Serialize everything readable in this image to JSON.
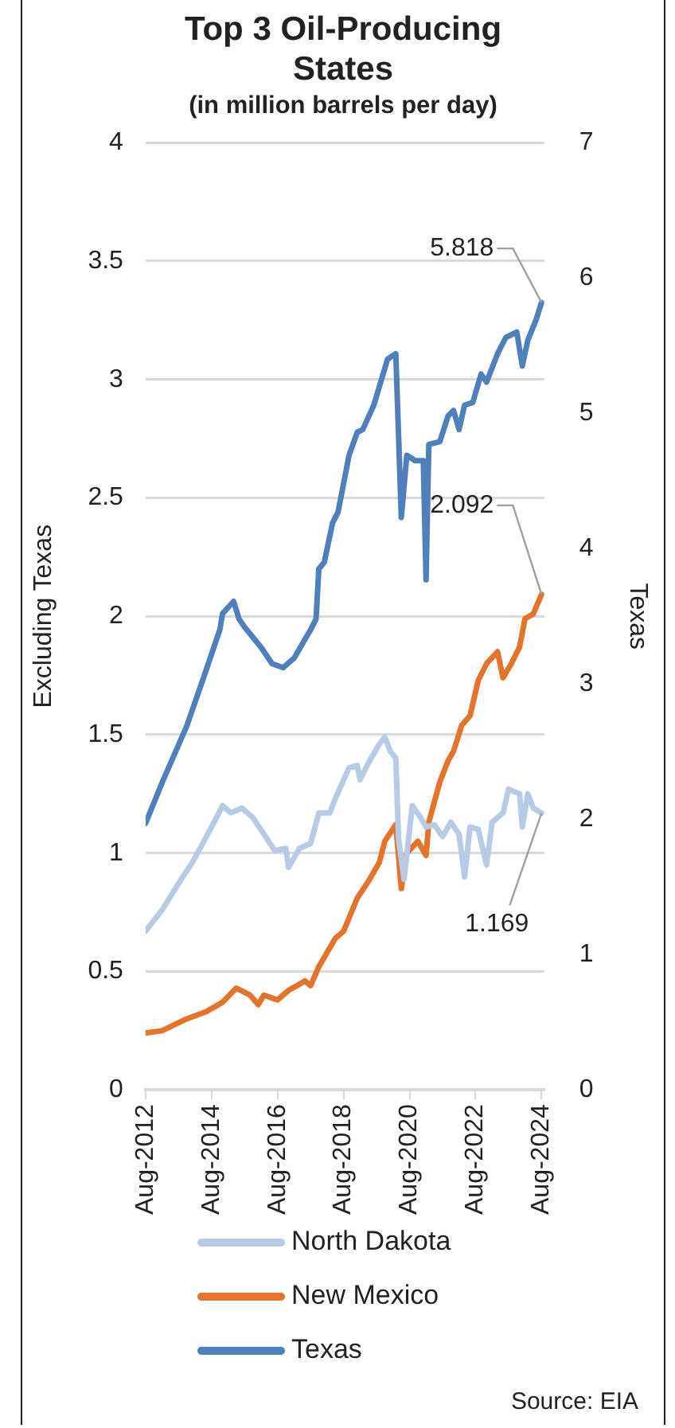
{
  "chart_data": {
    "type": "line",
    "title": "Top 3 Oil-Producing States",
    "subtitle": "(in million barrels per day)",
    "ylabel": "Excluding Texas",
    "y2label": "Texas",
    "xlim": [
      "2012-08",
      "2024-09"
    ],
    "xticks": [
      {
        "value": "2012-08",
        "label": "Aug-2012"
      },
      {
        "value": "2014-08",
        "label": "Aug-2014"
      },
      {
        "value": "2016-08",
        "label": "Aug-2016"
      },
      {
        "value": "2018-08",
        "label": "Aug-2018"
      },
      {
        "value": "2020-08",
        "label": "Aug-2020"
      },
      {
        "value": "2022-08",
        "label": "Aug-2022"
      },
      {
        "value": "2024-08",
        "label": "Aug-2024"
      }
    ],
    "ylim": [
      0,
      4
    ],
    "yticks": [
      0,
      0.5,
      1,
      1.5,
      2,
      2.5,
      3,
      3.5,
      4
    ],
    "y2lim": [
      0,
      7
    ],
    "y2ticks": [
      0,
      1,
      2,
      3,
      4,
      5,
      6,
      7
    ],
    "grid": "y",
    "legend": "bottom",
    "marker": "none",
    "series": [
      {
        "name": "North Dakota",
        "color": "#b7cbe4",
        "x": [
          "2012-08",
          "2013-02",
          "2013-09",
          "2014-01",
          "2014-08",
          "2014-12",
          "2015-03",
          "2015-07",
          "2015-11",
          "2016-03",
          "2016-07",
          "2016-11",
          "2016-12",
          "2017-04",
          "2017-08",
          "2017-11",
          "2018-03",
          "2018-05",
          "2018-10",
          "2019-01",
          "2019-02",
          "2019-05",
          "2019-09",
          "2019-11",
          "2020-01",
          "2020-03",
          "2020-04",
          "2020-06",
          "2020-09",
          "2020-12",
          "2021-02",
          "2021-05",
          "2021-08",
          "2021-11",
          "2022-02",
          "2022-04",
          "2022-06",
          "2022-09",
          "2022-12",
          "2023-02",
          "2023-06",
          "2023-08",
          "2023-12",
          "2024-01",
          "2024-03",
          "2024-05",
          "2024-08"
        ],
        "values": [
          0.67,
          0.76,
          0.89,
          0.96,
          1.11,
          1.2,
          1.17,
          1.19,
          1.15,
          1.08,
          1.01,
          1.02,
          0.94,
          1.02,
          1.04,
          1.17,
          1.17,
          1.23,
          1.36,
          1.37,
          1.31,
          1.38,
          1.46,
          1.49,
          1.43,
          1.4,
          1.06,
          0.89,
          1.2,
          1.15,
          1.11,
          1.12,
          1.07,
          1.13,
          1.08,
          0.9,
          1.11,
          1.1,
          0.95,
          1.13,
          1.17,
          1.27,
          1.25,
          1.11,
          1.25,
          1.19,
          1.169
        ],
        "value_labels": [
          null,
          null,
          null,
          null,
          null,
          null,
          null,
          null,
          null,
          null,
          null,
          null,
          null,
          null,
          null,
          null,
          null,
          null,
          null,
          null,
          null,
          null,
          null,
          null,
          null,
          null,
          null,
          null,
          null,
          null,
          null,
          null,
          null,
          null,
          null,
          null,
          null,
          null,
          null,
          null,
          null,
          null,
          null,
          null,
          null,
          null,
          "1.169"
        ]
      },
      {
        "name": "New Mexico",
        "color": "#e4732c",
        "x": [
          "2012-08",
          "2013-02",
          "2013-11",
          "2014-06",
          "2014-12",
          "2015-05",
          "2015-10",
          "2016-01",
          "2016-03",
          "2016-08",
          "2016-12",
          "2017-06",
          "2017-08",
          "2017-11",
          "2018-05",
          "2018-08",
          "2019-01",
          "2019-05",
          "2019-09",
          "2019-11",
          "2020-03",
          "2020-05",
          "2020-07",
          "2020-11",
          "2021-02",
          "2021-03",
          "2021-07",
          "2021-10",
          "2021-12",
          "2022-03",
          "2022-06",
          "2022-09",
          "2022-12",
          "2023-04",
          "2023-06",
          "2023-09",
          "2023-12",
          "2024-02",
          "2024-05",
          "2024-08"
        ],
        "values": [
          0.24,
          0.25,
          0.3,
          0.33,
          0.37,
          0.43,
          0.4,
          0.36,
          0.4,
          0.38,
          0.42,
          0.46,
          0.44,
          0.52,
          0.64,
          0.67,
          0.81,
          0.88,
          0.96,
          1.05,
          1.12,
          0.85,
          1.0,
          1.05,
          0.99,
          1.13,
          1.3,
          1.39,
          1.43,
          1.54,
          1.58,
          1.73,
          1.8,
          1.85,
          1.74,
          1.8,
          1.87,
          1.99,
          2.01,
          2.092
        ],
        "value_labels": [
          null,
          null,
          null,
          null,
          null,
          null,
          null,
          null,
          null,
          null,
          null,
          null,
          null,
          null,
          null,
          null,
          null,
          null,
          null,
          null,
          null,
          null,
          null,
          null,
          null,
          null,
          null,
          null,
          null,
          null,
          null,
          null,
          null,
          null,
          null,
          null,
          null,
          null,
          null,
          "2.092"
        ]
      },
      {
        "name": "Texas",
        "color": "#5080bb",
        "axis": "y2",
        "x": [
          "2012-08",
          "2013-02",
          "2013-11",
          "2014-06",
          "2014-11",
          "2014-12",
          "2015-04",
          "2015-06",
          "2015-08",
          "2016-02",
          "2016-06",
          "2016-10",
          "2017-02",
          "2017-06",
          "2017-08",
          "2017-10",
          "2017-11",
          "2018-01",
          "2018-04",
          "2018-06",
          "2018-10",
          "2019-01",
          "2019-03",
          "2019-07",
          "2019-12",
          "2020-03",
          "2020-05",
          "2020-07",
          "2020-10",
          "2021-01",
          "2021-02",
          "2021-03",
          "2021-07",
          "2021-10",
          "2021-12",
          "2022-02",
          "2022-04",
          "2022-07",
          "2022-10",
          "2022-12",
          "2023-04",
          "2023-07",
          "2023-11",
          "2024-01",
          "2024-03",
          "2024-06",
          "2024-08"
        ],
        "values": [
          1.97,
          2.27,
          2.69,
          3.1,
          3.4,
          3.52,
          3.61,
          3.48,
          3.42,
          3.27,
          3.15,
          3.12,
          3.19,
          3.33,
          3.4,
          3.48,
          3.85,
          3.9,
          4.19,
          4.27,
          4.69,
          4.86,
          4.88,
          5.06,
          5.4,
          5.44,
          4.23,
          4.69,
          4.65,
          4.65,
          3.77,
          4.77,
          4.79,
          4.98,
          5.02,
          4.88,
          5.06,
          5.08,
          5.29,
          5.23,
          5.44,
          5.56,
          5.6,
          5.35,
          5.54,
          5.69,
          5.818
        ],
        "value_labels": [
          null,
          null,
          null,
          null,
          null,
          null,
          null,
          null,
          null,
          null,
          null,
          null,
          null,
          null,
          null,
          null,
          null,
          null,
          null,
          null,
          null,
          null,
          null,
          null,
          null,
          null,
          null,
          null,
          null,
          null,
          null,
          null,
          null,
          null,
          null,
          null,
          null,
          null,
          null,
          null,
          null,
          null,
          null,
          null,
          null,
          null,
          "5.818"
        ]
      }
    ],
    "annotations": [
      "Source: EIA"
    ]
  }
}
